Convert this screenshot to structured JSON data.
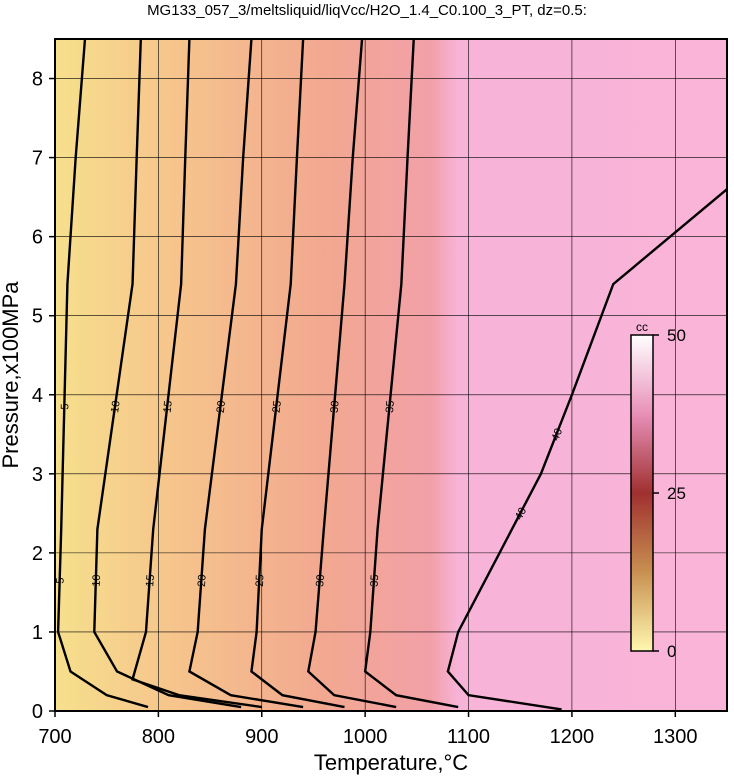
{
  "chart_data": {
    "type": "contour",
    "title": "MG133_057_3/meltsliquid/liqVcc/H2O_1.4_C0.100_3_PT, dz=0.5:",
    "xlabel": "Temperature,°C",
    "ylabel": "Pressure,x100MPa",
    "xlim": [
      700,
      1350
    ],
    "xticks": [
      700,
      800,
      900,
      1000,
      1100,
      1200,
      1300
    ],
    "ylim": [
      0,
      8.5
    ],
    "yticks": [
      0,
      1,
      2,
      3,
      4,
      5,
      6,
      7,
      8
    ],
    "grid": true,
    "contours": [
      {
        "level": 5,
        "x": [
          729,
          720,
          712,
          706,
          703,
          715,
          750,
          790
        ],
        "y": [
          8.5,
          7,
          5.4,
          2.3,
          1.0,
          0.5,
          0.2,
          0.05
        ]
      },
      {
        "level": 10,
        "x": [
          783,
          779,
          775,
          741,
          738,
          760,
          810,
          880
        ],
        "y": [
          8.5,
          7,
          5.4,
          2.3,
          1.0,
          0.5,
          0.2,
          0.05
        ]
      },
      {
        "level": 15,
        "x": [
          830,
          826,
          822,
          795,
          788,
          775,
          820,
          900
        ],
        "y": [
          8.5,
          7,
          5.4,
          2.3,
          1.0,
          0.4,
          0.2,
          0.05
        ]
      },
      {
        "level": 20,
        "x": [
          890,
          882,
          875,
          845,
          838,
          830,
          870,
          940
        ],
        "y": [
          8.5,
          7,
          5.4,
          2.3,
          1.0,
          0.5,
          0.2,
          0.05
        ]
      },
      {
        "level": 25,
        "x": [
          940,
          934,
          928,
          900,
          895,
          890,
          920,
          980
        ],
        "y": [
          8.5,
          7,
          5.4,
          2.3,
          1.0,
          0.5,
          0.2,
          0.05
        ]
      },
      {
        "level": 30,
        "x": [
          997,
          988,
          980,
          960,
          952,
          945,
          970,
          1030
        ],
        "y": [
          8.5,
          7,
          5.4,
          2.3,
          1.0,
          0.5,
          0.2,
          0.05
        ]
      },
      {
        "level": 35,
        "x": [
          1047,
          1041,
          1035,
          1012,
          1005,
          1000,
          1030,
          1090
        ],
        "y": [
          8.5,
          7,
          5.4,
          2.3,
          1.0,
          0.5,
          0.2,
          0.05
        ]
      },
      {
        "level": 40,
        "x": [
          1350,
          1240,
          1200,
          1170,
          1130,
          1090,
          1080,
          1100,
          1190
        ],
        "y": [
          6.6,
          5.4,
          4,
          3,
          2,
          1,
          0.5,
          0.2,
          0.02
        ]
      }
    ],
    "colorbar": {
      "label": "cc",
      "lim": [
        0,
        50
      ],
      "ticks": [
        0,
        25,
        50
      ],
      "colors": [
        "#fff8b0",
        "#c89050",
        "#a03030",
        "#e890b8",
        "#ffffff"
      ]
    }
  }
}
